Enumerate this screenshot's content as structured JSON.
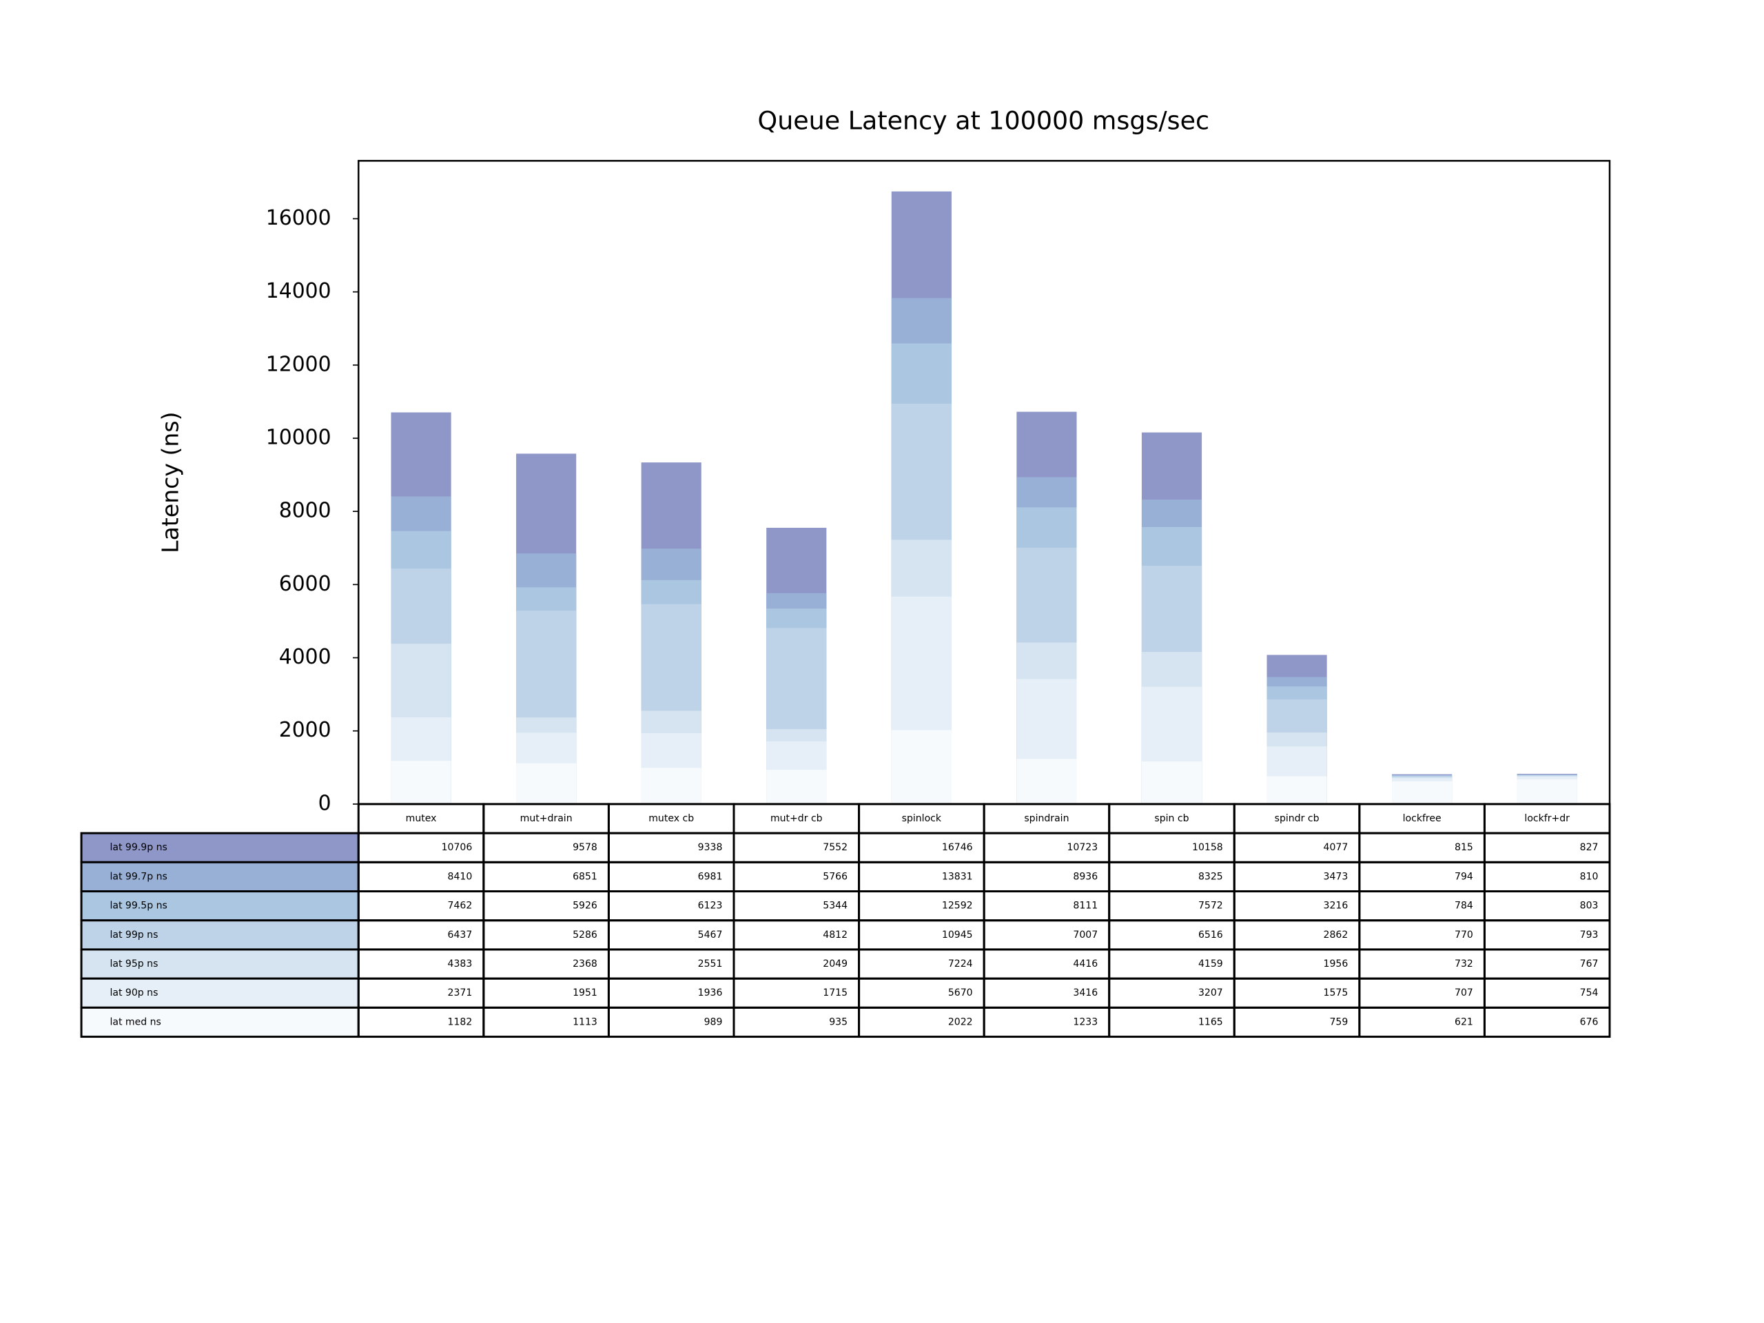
{
  "chart_data": {
    "type": "bar",
    "title": "Queue Latency at 100000 msgs/sec",
    "y_label": "Latency (ns)",
    "categories": [
      "mutex",
      "mut+drain",
      "mutex cb",
      "mut+dr cb",
      "spinlock",
      "spindrain",
      "spin cb",
      "spindr cb",
      "lockfree",
      "lockfr+dr"
    ],
    "series": [
      {
        "name": "lat 99.9p ns",
        "color": "#8f96c8",
        "values": [
          10706,
          9578,
          9338,
          7552,
          16746,
          10723,
          10158,
          4077,
          815,
          827
        ]
      },
      {
        "name": "lat 99.7p ns",
        "color": "#98b0d6",
        "values": [
          8410,
          6851,
          6981,
          5766,
          13831,
          8936,
          8325,
          3473,
          794,
          810
        ]
      },
      {
        "name": "lat 99.5p ns",
        "color": "#aac6e1",
        "values": [
          7462,
          5926,
          6123,
          5344,
          12592,
          8111,
          7572,
          3216,
          784,
          803
        ]
      },
      {
        "name": "lat 99p ns",
        "color": "#bed3e8",
        "values": [
          6437,
          5286,
          5467,
          4812,
          10945,
          7007,
          6516,
          2862,
          770,
          793
        ]
      },
      {
        "name": "lat 95p ns",
        "color": "#d5e4f0",
        "values": [
          4383,
          2368,
          2551,
          2049,
          7224,
          4416,
          4159,
          1956,
          732,
          767
        ]
      },
      {
        "name": "lat 90p ns",
        "color": "#e6eff7",
        "values": [
          2371,
          1951,
          1936,
          1715,
          5670,
          3416,
          3207,
          1575,
          707,
          754
        ]
      },
      {
        "name": "lat med ns",
        "color": "#f6fafc",
        "values": [
          1182,
          1113,
          989,
          935,
          2022,
          1233,
          1165,
          759,
          621,
          676
        ]
      }
    ],
    "ylim": [
      0,
      17583
    ],
    "yticks": [
      0,
      2000,
      4000,
      6000,
      8000,
      10000,
      12000,
      14000,
      16000
    ]
  }
}
